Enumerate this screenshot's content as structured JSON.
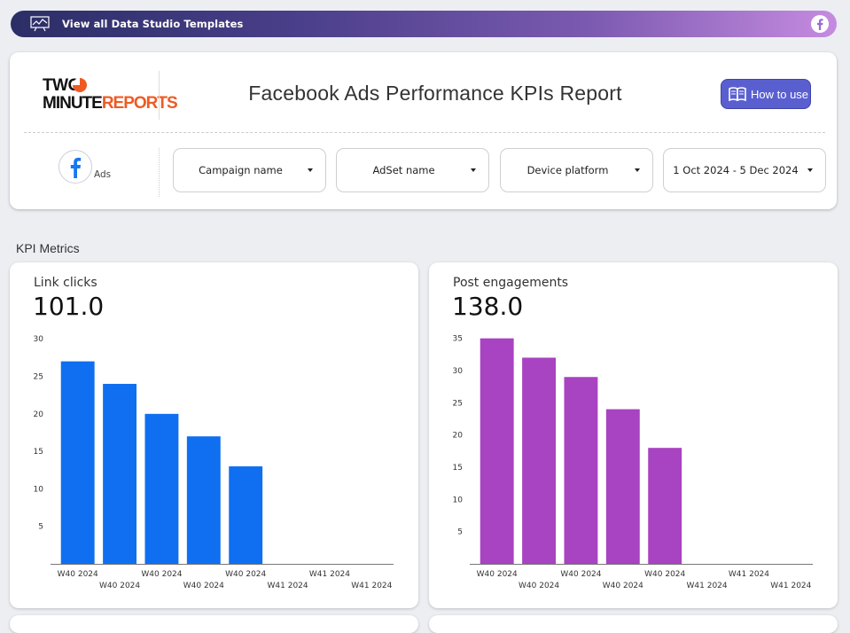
{
  "banner": {
    "label": "View all Data Studio Templates"
  },
  "header": {
    "logo": {
      "line1": "TWO",
      "line2a": "MINUTE",
      "line2b": "REPORTS"
    },
    "title": "Facebook Ads Performance KPIs Report",
    "how_to_use": "How to use",
    "source_label": "Ads"
  },
  "filters": [
    {
      "label": "Campaign name"
    },
    {
      "label": "AdSet name"
    },
    {
      "label": "Device platform"
    },
    {
      "label": "1 Oct 2024 - 5 Dec 2024"
    }
  ],
  "section_title": "KPI Metrics",
  "colors": {
    "blue": "#0f6ff0",
    "purple": "#a843c1",
    "fb": "#1877f2"
  },
  "chart_data": [
    {
      "type": "bar",
      "title": "Link clicks",
      "scorecard": "101.0",
      "categories": [
        "W40 2024",
        "W40 2024",
        "W40 2024",
        "W40 2024",
        "W40 2024",
        "W41 2024",
        "W41 2024",
        "W41 2024"
      ],
      "values": [
        27,
        24,
        20,
        17,
        13,
        null,
        null,
        null
      ],
      "yticks": [
        5,
        10,
        15,
        20,
        25,
        30
      ],
      "ylim": [
        0,
        30.5
      ],
      "color": "#0f6ff0",
      "grid": false
    },
    {
      "type": "bar",
      "title": "Post engagements",
      "scorecard": "138.0",
      "categories": [
        "W40 2024",
        "W40 2024",
        "W40 2024",
        "W40 2024",
        "W40 2024",
        "W41 2024",
        "W41 2024",
        "W41 2024"
      ],
      "values": [
        35,
        32,
        29,
        24,
        18,
        null,
        null,
        null
      ],
      "yticks": [
        5,
        10,
        15,
        20,
        25,
        30,
        35
      ],
      "ylim": [
        0,
        35.5
      ],
      "color": "#a843c1",
      "grid": false
    }
  ]
}
